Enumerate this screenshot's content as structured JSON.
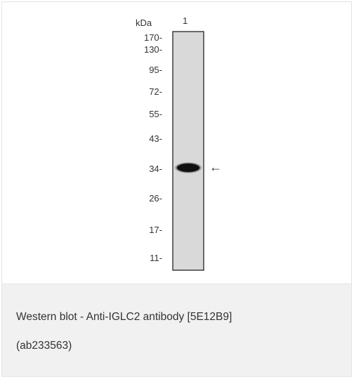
{
  "figure": {
    "units_label": "kDa",
    "lane_label": "1",
    "markers": [
      "170-",
      "130-",
      "95-",
      "72-",
      "55-",
      "43-",
      "34-",
      "26-",
      "17-",
      "11-"
    ],
    "arrow_glyph": "←"
  },
  "caption": {
    "line1": "Western blot - Anti-IGLC2 antibody [5E12B9]",
    "line2": "(ab233563)"
  },
  "colors": {
    "panel_background": "#f1f1f1",
    "lane_fill": "#dcdcdc",
    "band": "#111111"
  }
}
